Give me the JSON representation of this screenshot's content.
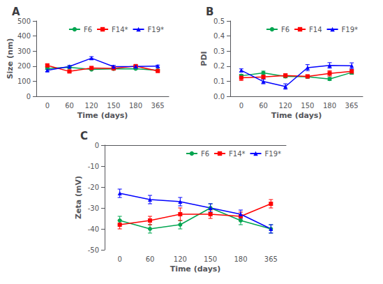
{
  "chart_data": [
    {
      "type": "line",
      "title": "A",
      "xlabel": "Time (days)",
      "ylabel": "Size (nm)",
      "categories": [
        "0",
        "60",
        "120",
        "150",
        "180",
        "365"
      ],
      "series": [
        {
          "name": "F6",
          "color": "#00A550",
          "marker": "circle",
          "line_style": "solid",
          "values": [
            185,
            192,
            178,
            182,
            183,
            172
          ],
          "errors": [
            6,
            5,
            5,
            5,
            5,
            5
          ]
        },
        {
          "name": "F14*",
          "color": "#FF0000",
          "marker": "square",
          "line_style": "solid",
          "values": [
            205,
            165,
            188,
            185,
            200,
            168
          ],
          "errors": [
            8,
            6,
            8,
            8,
            8,
            6
          ]
        },
        {
          "name": "F19*",
          "color": "#0000FF",
          "marker": "triangle",
          "line_style": "solid",
          "values": [
            172,
            198,
            253,
            197,
            198,
            200
          ],
          "errors": [
            7,
            7,
            10,
            8,
            7,
            7
          ]
        }
      ],
      "ylim": [
        0,
        500
      ],
      "yticks": [
        0,
        100,
        200,
        300,
        400,
        500
      ],
      "grid": false,
      "legend": "upper right"
    },
    {
      "type": "line",
      "title": "B",
      "xlabel": "Time (days)",
      "ylabel": "PDI",
      "categories": [
        "0",
        "60",
        "120",
        "150",
        "180",
        "365"
      ],
      "series": [
        {
          "name": "F6",
          "color": "#00A550",
          "marker": "circle",
          "line_style": "solid",
          "values": [
            0.136,
            0.155,
            0.132,
            0.13,
            0.115,
            0.158
          ],
          "errors": [
            0.01,
            0.012,
            0.01,
            0.01,
            0.01,
            0.012
          ]
        },
        {
          "name": "F14",
          "color": "#FF0000",
          "marker": "square",
          "line_style": "solid",
          "values": [
            0.123,
            0.128,
            0.138,
            0.132,
            0.152,
            0.165
          ],
          "errors": [
            0.018,
            0.012,
            0.012,
            0.01,
            0.018,
            0.015
          ]
        },
        {
          "name": "F19*",
          "color": "#0000FF",
          "marker": "triangle",
          "line_style": "solid",
          "values": [
            0.172,
            0.098,
            0.065,
            0.19,
            0.205,
            0.202
          ],
          "errors": [
            0.01,
            0.015,
            0.018,
            0.02,
            0.018,
            0.02
          ]
        }
      ],
      "ylim": [
        0.0,
        0.5
      ],
      "yticks": [
        {
          "value": 0.0,
          "label": "0.0"
        },
        0.1,
        0.2,
        0.3,
        0.4,
        0.5
      ],
      "grid": false,
      "legend": "upper right"
    },
    {
      "type": "line",
      "title": "C",
      "xlabel": "Time (days)",
      "ylabel": "Zeta (mV)",
      "categories": [
        "0",
        "60",
        "120",
        "150",
        "180",
        "365"
      ],
      "series": [
        {
          "name": "F6",
          "color": "#00A550",
          "marker": "circle",
          "line_style": "solid",
          "values": [
            -36,
            -40,
            -38,
            -30,
            -36,
            -40
          ],
          "errors": [
            2,
            2,
            2,
            2,
            2,
            2
          ]
        },
        {
          "name": "F14*",
          "color": "#FF0000",
          "marker": "square",
          "line_style": "solid",
          "values": [
            -38,
            -36,
            -33,
            -33,
            -34,
            -28
          ],
          "errors": [
            2,
            2,
            3,
            2,
            2,
            2
          ]
        },
        {
          "name": "F19*",
          "color": "#0000FF",
          "marker": "triangle",
          "line_style": "solid",
          "values": [
            -23,
            -26,
            -27,
            -30,
            -33,
            -40
          ],
          "errors": [
            2,
            2,
            2,
            2,
            2,
            2
          ]
        }
      ],
      "ylim": [
        -50,
        0
      ],
      "yticks": [
        -50,
        -40,
        -30,
        -20,
        -10,
        0
      ],
      "grid": false,
      "legend": "upper right"
    }
  ]
}
